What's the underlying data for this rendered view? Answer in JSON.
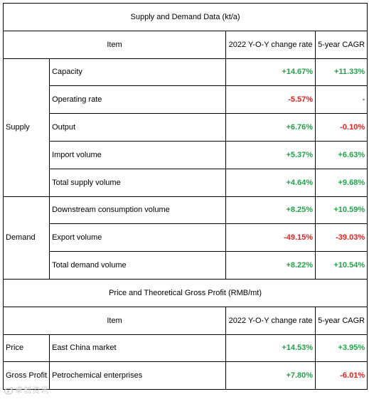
{
  "sections": {
    "supply_demand_title": "Supply and Demand Data (kt/a)",
    "price_profit_title": "Price and Theoretical Gross Profit (RMB/mt)"
  },
  "headers": {
    "item": "Item",
    "yoy": "2022 Y-O-Y change rate",
    "cagr": "5-year CAGR"
  },
  "groups": {
    "supply": "Supply",
    "demand": "Demand",
    "price": "Price",
    "gross_profit": "Gross Profit"
  },
  "rows": {
    "capacity": {
      "item": "Capacity",
      "yoy": "+14.67%",
      "cagr": "+11.33%"
    },
    "operating_rate": {
      "item": "Operating rate",
      "yoy": "-5.57%",
      "cagr": "-"
    },
    "output": {
      "item": "Output",
      "yoy": "+6.76%",
      "cagr": "-0.10%"
    },
    "import_volume": {
      "item": "Import volume",
      "yoy": "+5.37%",
      "cagr": "+6.63%"
    },
    "total_supply": {
      "item": "Total supply volume",
      "yoy": "+4.64%",
      "cagr": "+9.68%"
    },
    "downstream": {
      "item": "Downstream consumption volume",
      "yoy": "+8.25%",
      "cagr": "+10.59%"
    },
    "export_volume": {
      "item": "Export volume",
      "yoy": "-49.15%",
      "cagr": "-39.03%"
    },
    "total_demand": {
      "item": "Total demand volume",
      "yoy": "+8.22%",
      "cagr": "+10.54%"
    },
    "east_china": {
      "item": "East China market",
      "yoy": "+14.53%",
      "cagr": "+3.95%"
    },
    "petrochemical": {
      "item": "Petrochemical enterprises",
      "yoy": "+7.80%",
      "cagr": "-6.01%"
    }
  },
  "colors": {
    "positive": "#22a24a",
    "negative": "#e0221f"
  },
  "watermark": {
    "text": "卓创资讯",
    "icon": "weibo-icon"
  }
}
